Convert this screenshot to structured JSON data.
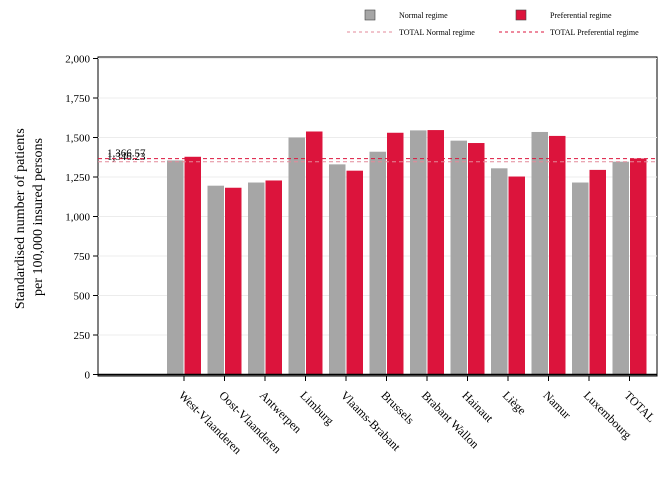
{
  "chart_data": {
    "type": "bar",
    "title": "",
    "xlabel": "",
    "ylabel": [
      "Standardised number of patients",
      "per 100,000 insured persons"
    ],
    "ylim": [
      0,
      2000
    ],
    "yticks": [
      0,
      250,
      500,
      750,
      1000,
      1250,
      1500,
      1750,
      2000
    ],
    "ytick_labels": [
      "0",
      "250",
      "500",
      "750",
      "1,000",
      "1,250",
      "1,500",
      "1,750",
      "2,000"
    ],
    "grid": true,
    "legend_position": "top-right",
    "categories": [
      "West-Vlaanderen",
      "Oost-Vlaanderen",
      "Antwerpen",
      "Limburg",
      "Vlaams-Brabant",
      "Brussels",
      "Brabant Wallon",
      "Hainaut",
      "Liège",
      "Namur",
      "Luxembourg",
      "TOTAL"
    ],
    "series": [
      {
        "name": "Normal regime",
        "color": "#a6a6a6",
        "values": [
          1355,
          1195,
          1215,
          1500,
          1330,
          1410,
          1545,
          1480,
          1305,
          1535,
          1215,
          1347
        ]
      },
      {
        "name": "Preferential regime",
        "color": "#dc143c",
        "values": [
          1378,
          1182,
          1228,
          1538,
          1290,
          1530,
          1547,
          1465,
          1253,
          1510,
          1295,
          1367
        ]
      }
    ],
    "reference_lines": [
      {
        "name": "TOTAL Normal regime",
        "value": 1346.23,
        "label": "1,346.23",
        "color": "#e38a9a"
      },
      {
        "name": "TOTAL Preferential regime",
        "value": 1366.57,
        "label": "1,366.57",
        "color": "#dc143c"
      }
    ]
  }
}
